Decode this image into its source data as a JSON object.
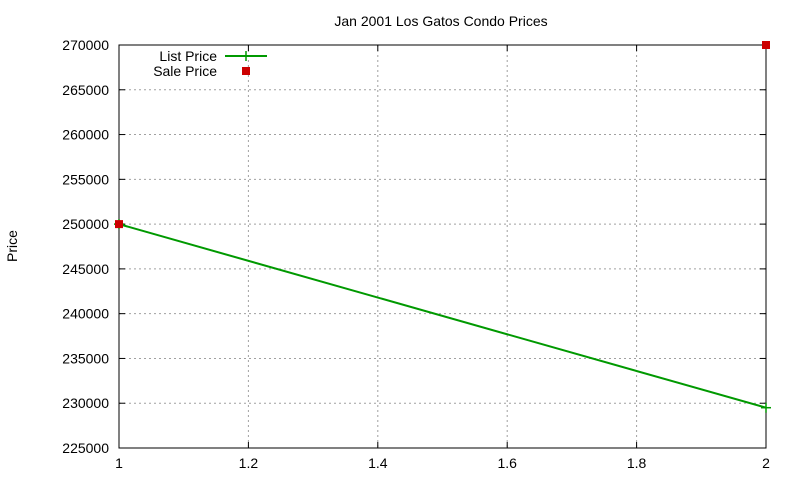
{
  "chart_data": {
    "type": "line",
    "title": "Jan 2001 Los Gatos Condo Prices",
    "xlabel": "",
    "ylabel": "Price",
    "xlim": [
      1,
      2
    ],
    "ylim": [
      225000,
      270000
    ],
    "xticks": [
      1,
      1.2,
      1.4,
      1.6,
      1.8,
      2
    ],
    "xtick_labels": [
      "1",
      "1.2",
      "1.4",
      "1.6",
      "1.8",
      "2"
    ],
    "yticks": [
      225000,
      230000,
      235000,
      240000,
      245000,
      250000,
      255000,
      260000,
      265000,
      270000
    ],
    "ytick_labels": [
      "225000",
      "230000",
      "235000",
      "240000",
      "245000",
      "250000",
      "255000",
      "260000",
      "265000",
      "270000"
    ],
    "grid": true,
    "legend_position": "top-left",
    "series": [
      {
        "name": "List Price",
        "style": "line-with-plus-markers",
        "color": "#009900",
        "x": [
          1,
          2
        ],
        "y": [
          250000,
          229500
        ]
      },
      {
        "name": "Sale Price",
        "style": "square-markers",
        "color": "#cc0000",
        "x": [
          1,
          2
        ],
        "y": [
          250000,
          270000
        ]
      }
    ]
  }
}
